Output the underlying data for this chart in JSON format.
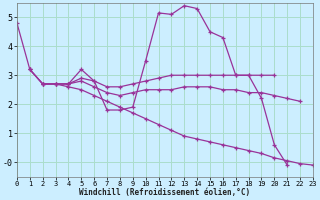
{
  "xlabel": "Windchill (Refroidissement éolien,°C)",
  "bg_color": "#cceeff",
  "grid_color": "#aaddcc",
  "line_color": "#993399",
  "xlim": [
    0,
    23
  ],
  "ylim": [
    -0.5,
    5.5
  ],
  "yticks": [
    0,
    1,
    2,
    3,
    4,
    5
  ],
  "ytick_labels": [
    "-0",
    "1",
    "2",
    "3",
    "4",
    "5"
  ],
  "xticks": [
    0,
    1,
    2,
    3,
    4,
    5,
    6,
    7,
    8,
    9,
    10,
    11,
    12,
    13,
    14,
    15,
    16,
    17,
    18,
    19,
    20,
    21,
    22,
    23
  ],
  "series": [
    {
      "x": [
        0,
        1,
        2,
        3,
        4,
        5,
        6,
        7,
        8,
        9,
        10,
        11,
        12,
        13,
        14,
        15,
        16,
        17,
        18,
        19,
        20,
        21,
        22,
        23
      ],
      "y": [
        4.8,
        3.2,
        2.7,
        2.7,
        2.7,
        3.2,
        2.8,
        1.8,
        1.8,
        1.9,
        3.5,
        5.15,
        5.1,
        5.4,
        5.3,
        4.5,
        4.3,
        3.0,
        3.0,
        2.2,
        0.6,
        -0.1,
        null,
        null
      ]
    },
    {
      "x": [
        1,
        2,
        3,
        4,
        5,
        6,
        7,
        8,
        9,
        10,
        11,
        12,
        13,
        14,
        15,
        16,
        17,
        18,
        19,
        20
      ],
      "y": [
        3.2,
        2.7,
        2.7,
        2.7,
        2.9,
        2.8,
        2.6,
        2.6,
        2.7,
        2.8,
        2.9,
        3.0,
        3.0,
        3.0,
        3.0,
        3.0,
        3.0,
        3.0,
        3.0,
        3.0
      ]
    },
    {
      "x": [
        2,
        3,
        4,
        5,
        6,
        7,
        8,
        9,
        10,
        11,
        12,
        13,
        14,
        15,
        16,
        17,
        18,
        19,
        20,
        21,
        22
      ],
      "y": [
        2.7,
        2.7,
        2.7,
        2.8,
        2.6,
        2.4,
        2.3,
        2.4,
        2.5,
        2.5,
        2.5,
        2.6,
        2.6,
        2.6,
        2.5,
        2.5,
        2.4,
        2.4,
        2.3,
        2.2,
        2.1
      ]
    },
    {
      "x": [
        1,
        2,
        3,
        4,
        5,
        6,
        7,
        8,
        9,
        10,
        11,
        12,
        13,
        14,
        15,
        16,
        17,
        18,
        19,
        20,
        21,
        22,
        23
      ],
      "y": [
        3.2,
        2.7,
        2.7,
        2.6,
        2.5,
        2.3,
        2.1,
        1.9,
        1.7,
        1.5,
        1.3,
        1.1,
        0.9,
        0.8,
        0.7,
        0.6,
        0.5,
        0.4,
        0.3,
        0.15,
        0.05,
        -0.05,
        -0.1
      ]
    }
  ]
}
